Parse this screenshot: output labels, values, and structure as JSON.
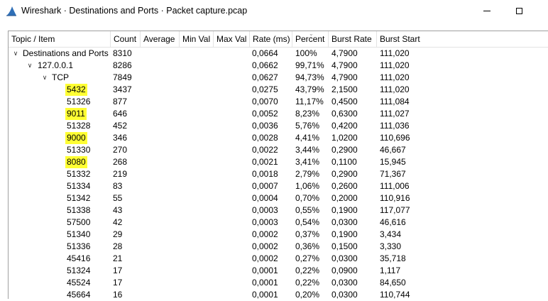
{
  "window": {
    "title": "Wireshark · Destinations and Ports · Packet capture.pcap",
    "colors": {
      "fin": "#2f6fb7",
      "highlight": "#ffff33"
    }
  },
  "columns": [
    "Topic / Item",
    "Count",
    "Average",
    "Min Val",
    "Max Val",
    "Rate (ms)",
    "Percent",
    "Burst Rate",
    "Burst Start"
  ],
  "rows": [
    {
      "level": 0,
      "expander": "∨",
      "item": "Destinations and Ports",
      "count": "8310",
      "rate": "0,0664",
      "percent": "100%",
      "burst_rate": "4,7900",
      "burst_start": "111,020",
      "highlighted": false
    },
    {
      "level": 1,
      "expander": "∨",
      "item": "127.0.0.1",
      "count": "8286",
      "rate": "0,0662",
      "percent": "99,71%",
      "burst_rate": "4,7900",
      "burst_start": "111,020",
      "highlighted": false
    },
    {
      "level": 2,
      "expander": "∨",
      "item": "TCP",
      "count": "7849",
      "rate": "0,0627",
      "percent": "94,73%",
      "burst_rate": "4,7900",
      "burst_start": "111,020",
      "highlighted": false
    },
    {
      "level": 3,
      "expander": "",
      "item": "5432",
      "count": "3437",
      "rate": "0,0275",
      "percent": "43,79%",
      "burst_rate": "2,1500",
      "burst_start": "111,020",
      "highlighted": true
    },
    {
      "level": 3,
      "expander": "",
      "item": "51326",
      "count": "877",
      "rate": "0,0070",
      "percent": "11,17%",
      "burst_rate": "0,4500",
      "burst_start": "111,084",
      "highlighted": false
    },
    {
      "level": 3,
      "expander": "",
      "item": "9011",
      "count": "646",
      "rate": "0,0052",
      "percent": "8,23%",
      "burst_rate": "0,6300",
      "burst_start": "111,027",
      "highlighted": true
    },
    {
      "level": 3,
      "expander": "",
      "item": "51328",
      "count": "452",
      "rate": "0,0036",
      "percent": "5,76%",
      "burst_rate": "0,4200",
      "burst_start": "111,036",
      "highlighted": false
    },
    {
      "level": 3,
      "expander": "",
      "item": "9000",
      "count": "346",
      "rate": "0,0028",
      "percent": "4,41%",
      "burst_rate": "1,0200",
      "burst_start": "110,696",
      "highlighted": true
    },
    {
      "level": 3,
      "expander": "",
      "item": "51330",
      "count": "270",
      "rate": "0,0022",
      "percent": "3,44%",
      "burst_rate": "0,2900",
      "burst_start": "46,667",
      "highlighted": false
    },
    {
      "level": 3,
      "expander": "",
      "item": "8080",
      "count": "268",
      "rate": "0,0021",
      "percent": "3,41%",
      "burst_rate": "0,1100",
      "burst_start": "15,945",
      "highlighted": true
    },
    {
      "level": 3,
      "expander": "",
      "item": "51332",
      "count": "219",
      "rate": "0,0018",
      "percent": "2,79%",
      "burst_rate": "0,2900",
      "burst_start": "71,367",
      "highlighted": false
    },
    {
      "level": 3,
      "expander": "",
      "item": "51334",
      "count": "83",
      "rate": "0,0007",
      "percent": "1,06%",
      "burst_rate": "0,2600",
      "burst_start": "111,006",
      "highlighted": false
    },
    {
      "level": 3,
      "expander": "",
      "item": "51342",
      "count": "55",
      "rate": "0,0004",
      "percent": "0,70%",
      "burst_rate": "0,2000",
      "burst_start": "110,916",
      "highlighted": false
    },
    {
      "level": 3,
      "expander": "",
      "item": "51338",
      "count": "43",
      "rate": "0,0003",
      "percent": "0,55%",
      "burst_rate": "0,1900",
      "burst_start": "117,077",
      "highlighted": false
    },
    {
      "level": 3,
      "expander": "",
      "item": "57500",
      "count": "42",
      "rate": "0,0003",
      "percent": "0,54%",
      "burst_rate": "0,0300",
      "burst_start": "46,616",
      "highlighted": false
    },
    {
      "level": 3,
      "expander": "",
      "item": "51340",
      "count": "29",
      "rate": "0,0002",
      "percent": "0,37%",
      "burst_rate": "0,1900",
      "burst_start": "3,434",
      "highlighted": false
    },
    {
      "level": 3,
      "expander": "",
      "item": "51336",
      "count": "28",
      "rate": "0,0002",
      "percent": "0,36%",
      "burst_rate": "0,1500",
      "burst_start": "3,330",
      "highlighted": false
    },
    {
      "level": 3,
      "expander": "",
      "item": "45416",
      "count": "21",
      "rate": "0,0002",
      "percent": "0,27%",
      "burst_rate": "0,0300",
      "burst_start": "35,718",
      "highlighted": false
    },
    {
      "level": 3,
      "expander": "",
      "item": "51324",
      "count": "17",
      "rate": "0,0001",
      "percent": "0,22%",
      "burst_rate": "0,0900",
      "burst_start": "1,117",
      "highlighted": false
    },
    {
      "level": 3,
      "expander": "",
      "item": "45524",
      "count": "17",
      "rate": "0,0001",
      "percent": "0,22%",
      "burst_rate": "0,0300",
      "burst_start": "84,650",
      "highlighted": false
    },
    {
      "level": 3,
      "expander": "",
      "item": "45664",
      "count": "16",
      "rate": "0,0001",
      "percent": "0,20%",
      "burst_rate": "0,0300",
      "burst_start": "110,744",
      "highlighted": false
    }
  ]
}
